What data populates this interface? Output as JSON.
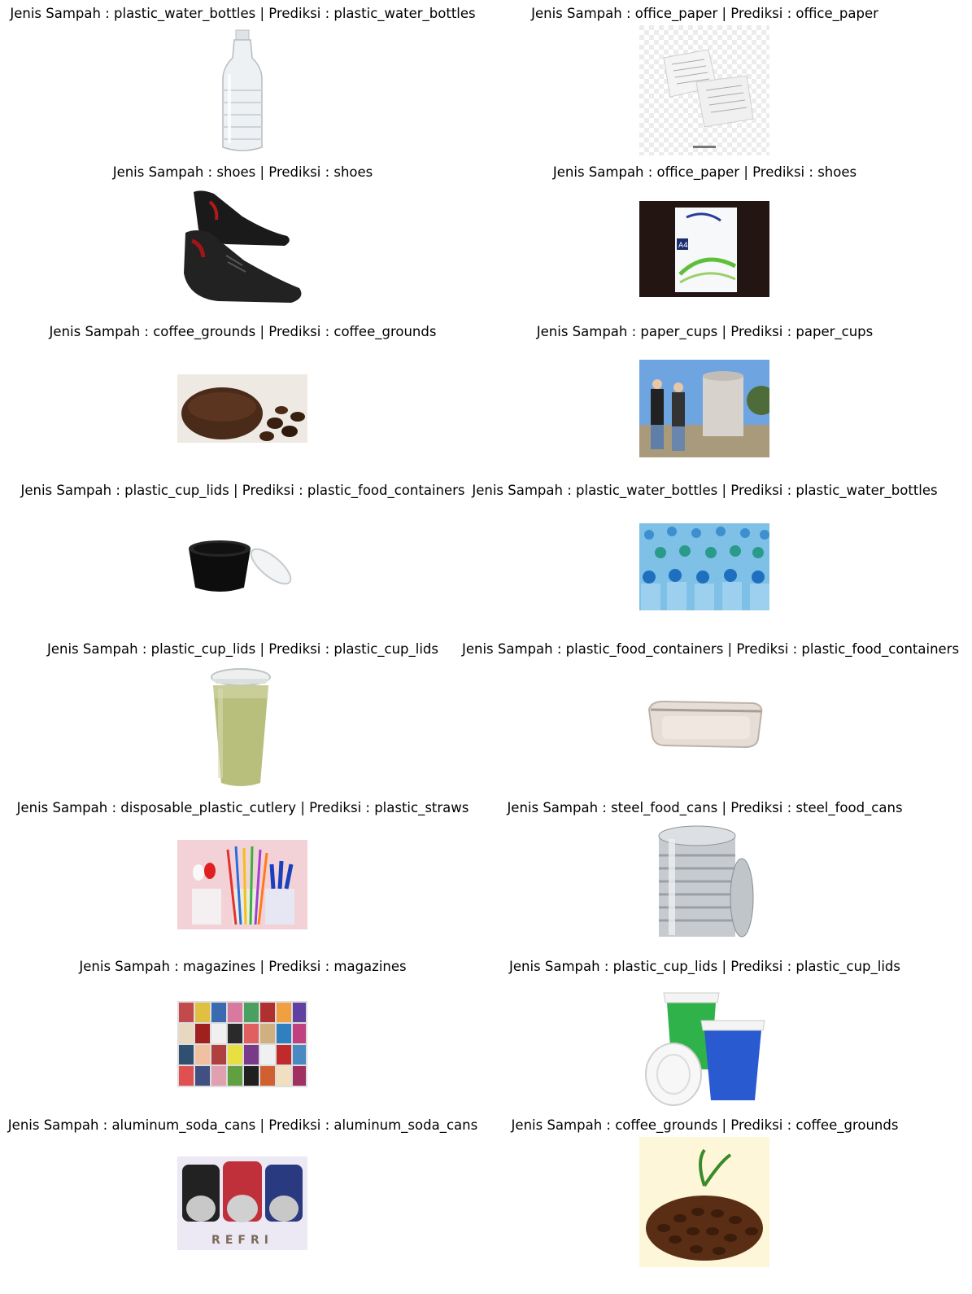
{
  "rows": [
    {
      "left": {
        "title": "Jenis Sampah : plastic_water_bottles | Prediksi : plastic_water_bottles",
        "subject": "plastic water bottle"
      },
      "right": {
        "title": "Jenis Sampah : office_paper | Prediksi : office_paper",
        "subject": "office paper sheets"
      }
    },
    {
      "left": {
        "title": "Jenis Sampah : shoes | Prediksi : shoes",
        "subject": "black leather shoes"
      },
      "right": {
        "title": "Jenis Sampah : office_paper | Prediksi : shoes",
        "subject": "A4 paper ream"
      }
    },
    {
      "left": {
        "title": "Jenis Sampah : coffee_grounds | Prediksi : coffee_grounds",
        "subject": "coffee grounds and beans"
      },
      "right": {
        "title": "Jenis Sampah : paper_cups | Prediksi : paper_cups",
        "subject": "people with giant cup"
      }
    },
    {
      "left": {
        "title": "Jenis Sampah : plastic_cup_lids | Prediksi : plastic_food_containers",
        "subject": "black cup with lid"
      },
      "right": {
        "title": "Jenis Sampah : plastic_water_bottles | Prediksi : plastic_water_bottles",
        "subject": "rows of blue bottles"
      }
    },
    {
      "left": {
        "title": "Jenis Sampah : plastic_cup_lids | Prediksi : plastic_cup_lids",
        "subject": "green drink cup with lid"
      },
      "right": {
        "title": "Jenis Sampah : plastic_food_containers | Prediksi : plastic_food_containers",
        "subject": "plastic food container"
      }
    },
    {
      "left": {
        "title": "Jenis Sampah : disposable_plastic_cutlery | Prediksi : plastic_straws",
        "subject": "colorful cutlery and straws"
      },
      "right": {
        "title": "Jenis Sampah : steel_food_cans | Prediksi : steel_food_cans",
        "subject": "steel can with lid"
      }
    },
    {
      "left": {
        "title": "Jenis Sampah : magazines | Prediksi : magazines",
        "subject": "magazine rack"
      },
      "right": {
        "title": "Jenis Sampah : plastic_cup_lids | Prediksi : plastic_cup_lids",
        "subject": "coffee cups with lids"
      }
    },
    {
      "left": {
        "title": "Jenis Sampah : aluminum_soda_cans | Prediksi : aluminum_soda_cans",
        "subject": "soda cans",
        "caption": "REFRI"
      },
      "right": {
        "title": "Jenis Sampah : coffee_grounds | Prediksi : coffee_grounds",
        "subject": "coffee beans with sprout"
      }
    }
  ]
}
